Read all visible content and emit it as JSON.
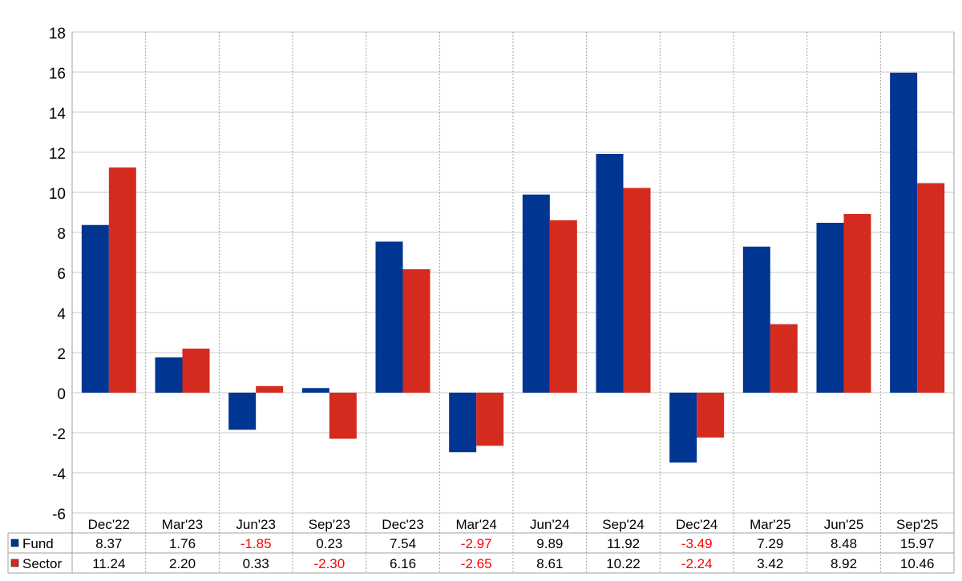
{
  "chart_data": {
    "type": "bar",
    "categories": [
      "Dec'22",
      "Mar'23",
      "Jun'23",
      "Sep'23",
      "Dec'23",
      "Mar'24",
      "Jun'24",
      "Sep'24",
      "Dec'24",
      "Mar'25",
      "Jun'25",
      "Sep'25"
    ],
    "series": [
      {
        "name": "Fund",
        "color": "#003592",
        "values": [
          8.37,
          1.76,
          -1.85,
          0.23,
          7.54,
          -2.97,
          9.89,
          11.92,
          -3.49,
          7.29,
          8.48,
          15.97
        ],
        "labels": [
          "8.37",
          "1.76",
          "-1.85",
          "0.23",
          "7.54",
          "-2.97",
          "9.89",
          "11.92",
          "-3.49",
          "7.29",
          "8.48",
          "15.97"
        ]
      },
      {
        "name": "Sector",
        "color": "#D52B1E",
        "values": [
          11.24,
          2.2,
          0.33,
          -2.3,
          6.16,
          -2.65,
          8.61,
          10.22,
          -2.24,
          3.42,
          8.92,
          10.46
        ],
        "labels": [
          "11.24",
          "2.20",
          "0.33",
          "-2.30",
          "6.16",
          "-2.65",
          "8.61",
          "10.22",
          "-2.24",
          "3.42",
          "8.92",
          "10.46"
        ]
      }
    ],
    "title": "",
    "xlabel": "",
    "ylabel": "",
    "ylim": [
      -6,
      18
    ],
    "yticks": [
      18,
      16,
      14,
      12,
      10,
      8,
      6,
      4,
      2,
      0,
      -2,
      -4,
      -6
    ],
    "grid": true,
    "legend": "data-table",
    "negative_value_color": "#FF0000"
  }
}
